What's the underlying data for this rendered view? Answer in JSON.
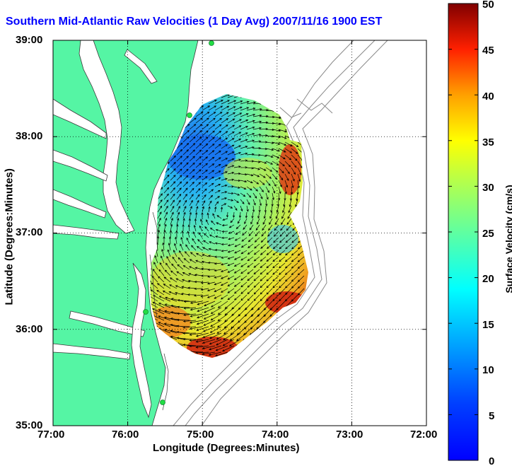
{
  "title": "Southern Mid-Atlantic Raw Velocities (1 Day Avg) 2007/11/16 1900 EST",
  "map": {
    "xlabel": "Longitude (Degrees:Minutes)",
    "ylabel": "Latitude (Degrees:Minutes)",
    "x_ticks": [
      "77:00",
      "76:00",
      "75:00",
      "74:00",
      "73:00",
      "72:00"
    ],
    "y_ticks": [
      "39:00",
      "38:00",
      "37:00",
      "36:00",
      "35:00"
    ],
    "lon_range": [
      -77,
      -72
    ],
    "lat_range": [
      35,
      39
    ],
    "grid": "dotted",
    "land_color": "#55f5a4",
    "bathymetry_color": "#8a8a8a",
    "station_color": "#22dd44"
  },
  "colorbar": {
    "label": "Surface Velocity (cm/s)",
    "ticks": [
      "50",
      "45",
      "40",
      "35",
      "30",
      "25",
      "20",
      "15",
      "10",
      "5",
      "0"
    ],
    "range": [
      0,
      50
    ],
    "colormap": "jet"
  }
}
